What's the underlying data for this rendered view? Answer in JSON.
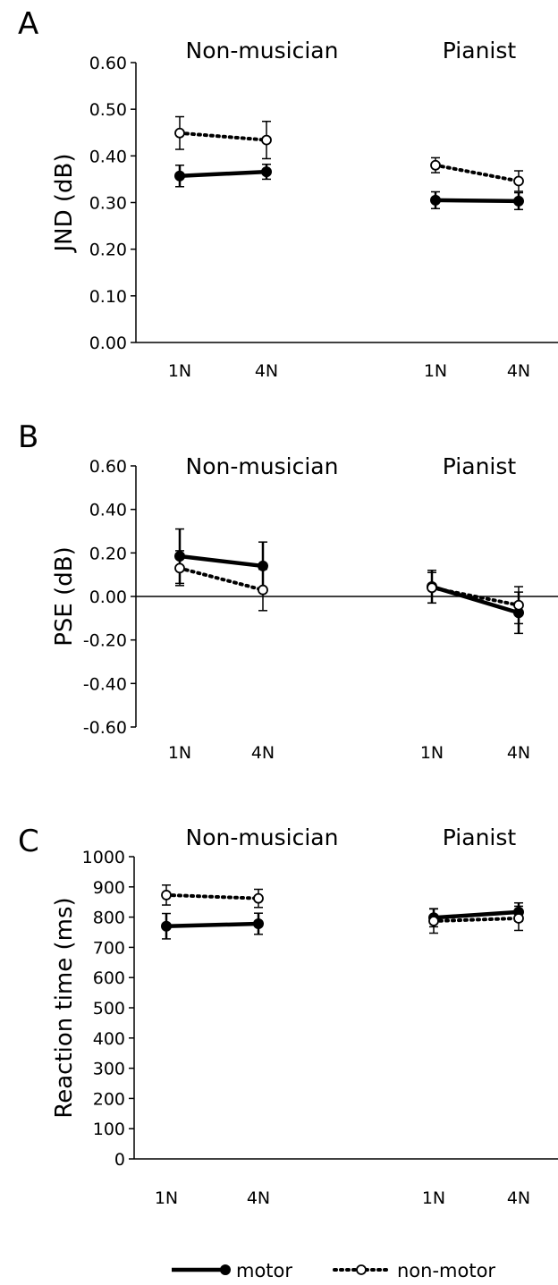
{
  "chart_data": [
    {
      "type": "line",
      "panel_letter": "A",
      "ylabel": "JND (dB)",
      "ylim": [
        0.0,
        0.6
      ],
      "yticks": [
        "0.00",
        "0.10",
        "0.20",
        "0.30",
        "0.40",
        "0.50",
        "0.60"
      ],
      "groups": [
        {
          "name": "Non-musician",
          "categories": [
            "1N",
            "4N"
          ]
        },
        {
          "name": "Pianist",
          "categories": [
            "1N",
            "4N"
          ]
        }
      ],
      "series": [
        {
          "name": "motor",
          "style": "solid",
          "marker": "filled",
          "groups": [
            {
              "values": [
                0.357,
                0.366
              ],
              "errors": [
                0.023,
                0.016
              ]
            },
            {
              "values": [
                0.305,
                0.303
              ],
              "errors": [
                0.018,
                0.018
              ]
            }
          ]
        },
        {
          "name": "non-motor",
          "style": "dotted",
          "marker": "open",
          "groups": [
            {
              "values": [
                0.449,
                0.434
              ],
              "errors": [
                0.035,
                0.04
              ]
            },
            {
              "values": [
                0.38,
                0.346
              ],
              "errors": [
                0.016,
                0.022
              ]
            }
          ]
        }
      ],
      "zero_line": false,
      "grid": false
    },
    {
      "type": "line",
      "panel_letter": "B",
      "ylabel": "PSE (dB)",
      "ylim": [
        -0.6,
        0.6
      ],
      "yticks": [
        "-0.60",
        "-0.40",
        "-0.20",
        "0.00",
        "0.20",
        "0.40",
        "0.60"
      ],
      "groups": [
        {
          "name": "Non-musician",
          "categories": [
            "1N",
            "4N"
          ]
        },
        {
          "name": "Pianist",
          "categories": [
            "1N",
            "4N"
          ]
        }
      ],
      "series": [
        {
          "name": "motor",
          "style": "solid",
          "marker": "filled",
          "groups": [
            {
              "values": [
                0.185,
                0.14
              ],
              "errors": [
                0.125,
                0.11
              ]
            },
            {
              "values": [
                0.045,
                -0.075
              ],
              "errors": [
                0.075,
                0.095
              ]
            }
          ]
        },
        {
          "name": "non-motor",
          "style": "dotted",
          "marker": "open",
          "groups": [
            {
              "values": [
                0.13,
                0.03
              ],
              "errors": [
                0.08,
                0.095
              ]
            },
            {
              "values": [
                0.04,
                -0.04
              ],
              "errors": [
                0.07,
                0.085
              ]
            }
          ]
        }
      ],
      "zero_line": true,
      "grid": false
    },
    {
      "type": "line",
      "panel_letter": "C",
      "ylabel": "Reaction time (ms)",
      "ylim": [
        0,
        1000
      ],
      "yticks": [
        "0",
        "100",
        "200",
        "300",
        "400",
        "500",
        "600",
        "700",
        "800",
        "900",
        "1000"
      ],
      "groups": [
        {
          "name": "Non-musician",
          "categories": [
            "1N",
            "4N"
          ]
        },
        {
          "name": "Pianist",
          "categories": [
            "1N",
            "4N"
          ]
        }
      ],
      "series": [
        {
          "name": "motor",
          "style": "solid",
          "marker": "filled",
          "groups": [
            {
              "values": [
                770,
                778
              ],
              "errors": [
                42,
                35
              ]
            },
            {
              "values": [
                798,
                817
              ],
              "errors": [
                30,
                30
              ]
            }
          ]
        },
        {
          "name": "non-motor",
          "style": "dotted",
          "marker": "open",
          "groups": [
            {
              "values": [
                873,
                862
              ],
              "errors": [
                33,
                30
              ]
            },
            {
              "values": [
                787,
                796
              ],
              "errors": [
                40,
                40
              ]
            }
          ]
        }
      ],
      "zero_line": false,
      "grid": false
    }
  ],
  "legend": {
    "position": "bottom",
    "items": [
      {
        "label": "motor",
        "style": "solid",
        "marker": "filled"
      },
      {
        "label": "non-motor",
        "style": "dotted",
        "marker": "open"
      }
    ]
  }
}
